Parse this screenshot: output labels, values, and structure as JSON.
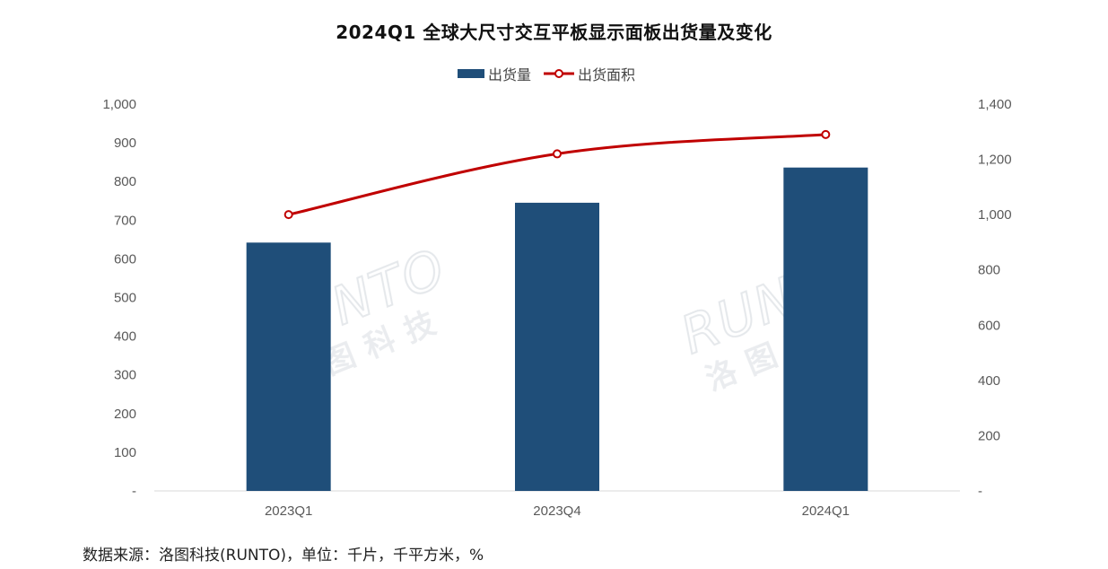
{
  "chart_data": {
    "type": "bar",
    "title": "2024Q1 全球大尺寸交互平板显示面板出货量及变化",
    "categories": [
      "2023Q1",
      "2023Q4",
      "2024Q1"
    ],
    "series": [
      {
        "name": "出货量",
        "type": "bar",
        "axis": "left",
        "color": "#1f4e79",
        "values": [
          642,
          745,
          836
        ]
      },
      {
        "name": "出货面积",
        "type": "line",
        "axis": "right",
        "color": "#c00000",
        "values": [
          1000,
          1220,
          1290
        ]
      }
    ],
    "y_left": {
      "ylim": [
        0,
        1000
      ],
      "ticks": [
        "-",
        "100",
        "200",
        "300",
        "400",
        "500",
        "600",
        "700",
        "800",
        "900",
        "1,000"
      ]
    },
    "y_right": {
      "ylim": [
        0,
        1400
      ],
      "ticks": [
        "-",
        "200",
        "400",
        "600",
        "800",
        "1,000",
        "1,200",
        "1,400"
      ]
    },
    "legend_position": "top",
    "grid": false
  },
  "source_note": "数据来源：洛图科技(RUNTO)，单位：千片，千平方米，%",
  "watermark": {
    "brand": "RUNTO",
    "chinese": "洛图科技"
  }
}
